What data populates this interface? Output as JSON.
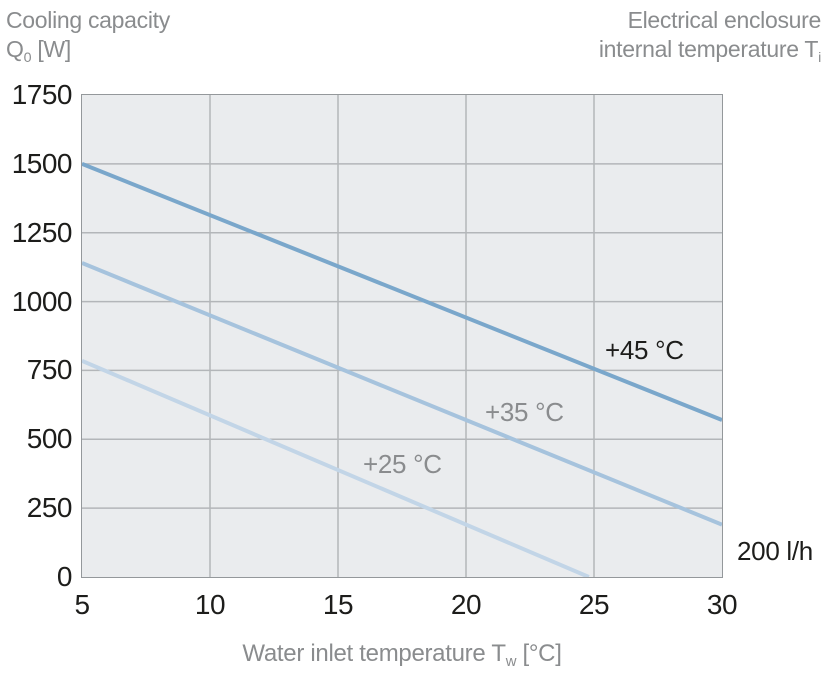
{
  "titles": {
    "left_line1": "Cooling capacity",
    "left_q": "Q",
    "left_q_sub": "0",
    "left_q_unit": " [W]",
    "right_line1": "Electrical enclosure",
    "right_line2_main": "internal temperature T",
    "right_line2_sub": "i"
  },
  "xlabel": {
    "main": "Water inlet temperature T",
    "sub": "w",
    "unit": " [°C]"
  },
  "colors": {
    "title_gray": "#8a8c8e",
    "tick_black": "#1d1d1b",
    "plot_background": "#eaecee",
    "gridline": "#b3b6b9",
    "plot_border": "#94989b"
  },
  "chart_data": {
    "type": "line",
    "title_left": "Cooling capacity Q0 [W]",
    "title_right": "Electrical enclosure internal temperature Ti",
    "xlabel": "Water inlet temperature Tw [°C]",
    "ylabel": "Cooling capacity Q0 [W]",
    "xlim": [
      5,
      30
    ],
    "ylim": [
      0,
      1750
    ],
    "x_ticks": [
      5,
      10,
      15,
      20,
      25,
      30
    ],
    "y_ticks": [
      0,
      250,
      500,
      750,
      1000,
      1250,
      1500,
      1750
    ],
    "grid": true,
    "flow_annotation": "200 l/h",
    "series": [
      {
        "name": "+45 °C",
        "points": [
          [
            5,
            1500
          ],
          [
            30,
            570
          ]
        ],
        "color": "#7aa7cb",
        "label_color": "#1d1d1b"
      },
      {
        "name": "+35 °C",
        "points": [
          [
            5,
            1140
          ],
          [
            30,
            190
          ]
        ],
        "color": "#a6c3dd",
        "label_color": "#8a8c8e"
      },
      {
        "name": "+25 °C",
        "points": [
          [
            5,
            785
          ],
          [
            24.8,
            0
          ]
        ],
        "color": "#c2d5e7",
        "label_color": "#8a8c8e"
      }
    ]
  }
}
